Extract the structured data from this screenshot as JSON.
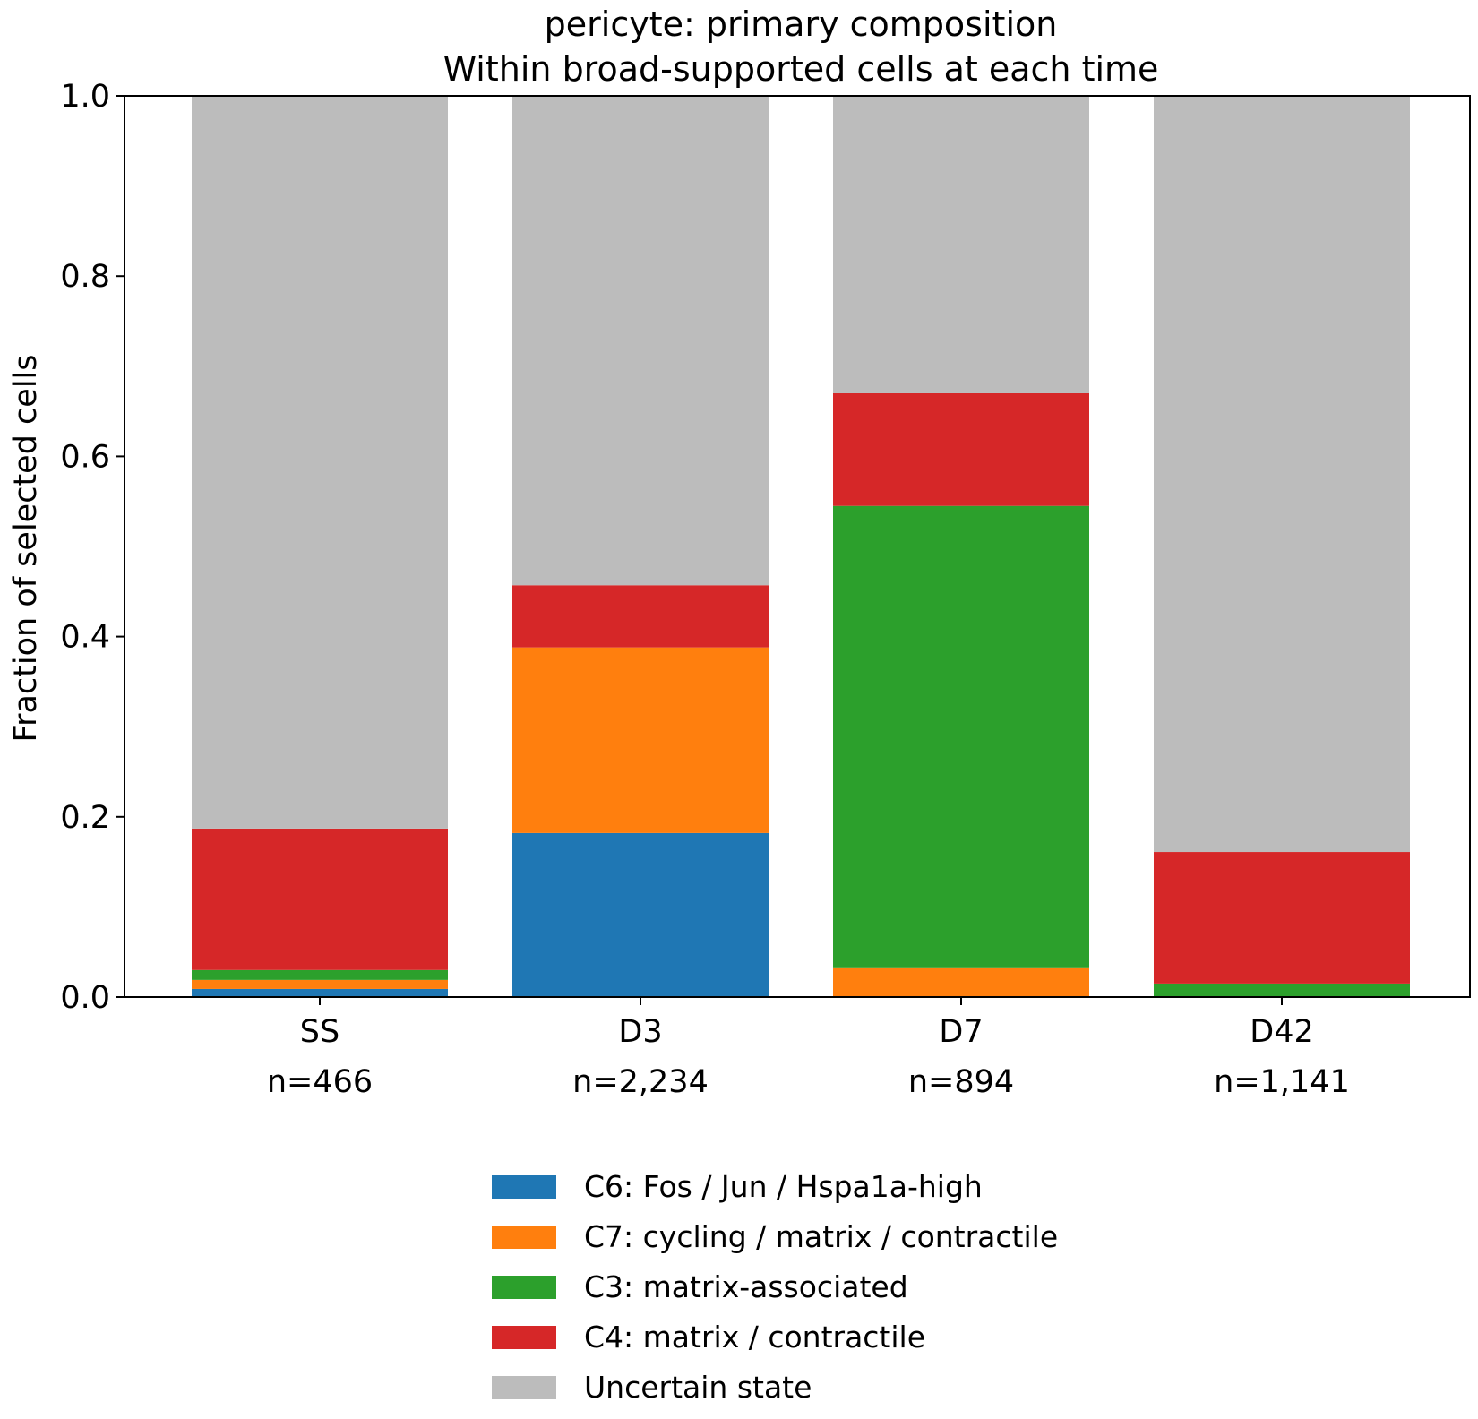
{
  "chart_data": {
    "type": "bar",
    "stacked": true,
    "title": "pericyte: primary composition",
    "subtitle": "Within broad-supported cells at each time",
    "xlabel": "",
    "ylabel": "Fraction of selected cells",
    "ylim": [
      0,
      1.0
    ],
    "yticks": [
      "0.0",
      "0.2",
      "0.4",
      "0.6",
      "0.8",
      "1.0"
    ],
    "categories": [
      "SS",
      "D3",
      "D7",
      "D42"
    ],
    "category_counts": [
      "n=466",
      "n=2,234",
      "n=894",
      "n=1,141"
    ],
    "series": [
      {
        "name": "C6: Fos / Jun / Hspa1a-high",
        "color": "#1f77b4",
        "values": [
          0.009,
          0.182,
          0.0,
          0.0
        ]
      },
      {
        "name": "C7: cycling / matrix / contractile",
        "color": "#ff7f0e",
        "values": [
          0.01,
          0.206,
          0.033,
          0.0
        ]
      },
      {
        "name": "C3: matrix-associated",
        "color": "#2ca02c",
        "values": [
          0.011,
          0.0,
          0.512,
          0.015
        ]
      },
      {
        "name": "C4: matrix / contractile",
        "color": "#d62728",
        "values": [
          0.157,
          0.069,
          0.125,
          0.146
        ]
      },
      {
        "name": "Uncertain state",
        "color": "#bcbcbc",
        "values": [
          0.813,
          0.543,
          0.33,
          0.839
        ]
      }
    ],
    "grid": false,
    "legend_position": "bottom-center"
  }
}
